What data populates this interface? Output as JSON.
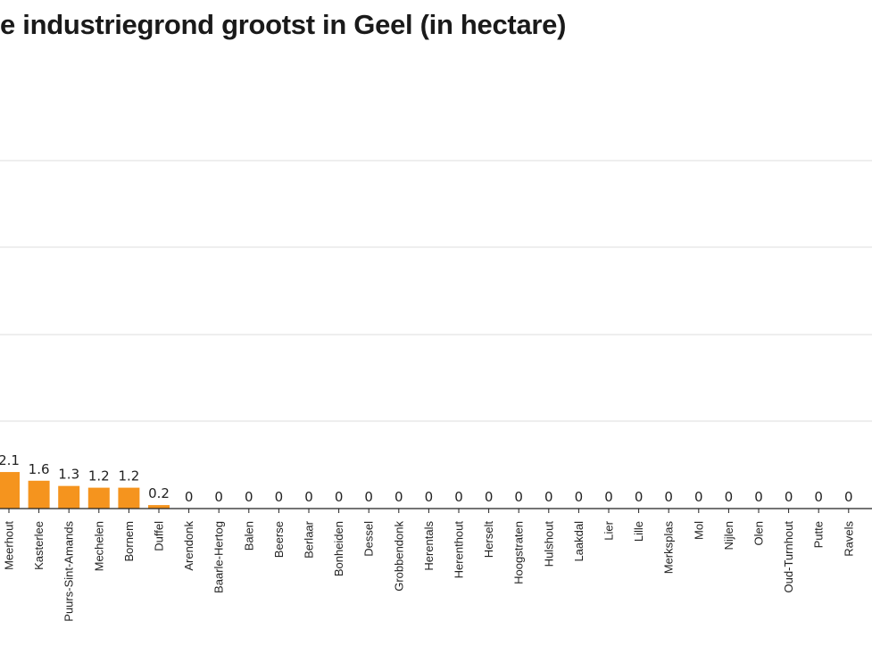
{
  "title": "e industriegrond grootst in Geel (in hectare)",
  "chart_data": {
    "type": "bar",
    "title": "e industriegrond grootst in Geel (in hectare)",
    "xlabel": "",
    "ylabel": "",
    "grid": true,
    "colors": {
      "bar": "#f5941e",
      "grid": "#e3e3e3",
      "axis": "#222222"
    },
    "categories": [
      "Meerhout",
      "Kasterlee",
      "Puurs-Sint-Amands",
      "Mechelen",
      "Bornem",
      "Duffel",
      "Arendonk",
      "Baarle-Hertog",
      "Balen",
      "Beerse",
      "Berlaar",
      "Bonheiden",
      "Dessel",
      "Grobbendonk",
      "Herentals",
      "Herenthout",
      "Herselt",
      "Hoogstraten",
      "Hulshout",
      "Laakdal",
      "Lier",
      "Lille",
      "Merksplas",
      "Mol",
      "Nijlen",
      "Olen",
      "Oud-Turnhout",
      "Putte",
      "Ravels"
    ],
    "values": [
      2.1,
      1.6,
      1.3,
      1.2,
      1.2,
      0.2,
      0,
      0,
      0,
      0,
      0,
      0,
      0,
      0,
      0,
      0,
      0,
      0,
      0,
      0,
      0,
      0,
      0,
      0,
      0,
      0,
      0,
      0,
      0
    ],
    "value_labels": [
      "2.1",
      "1.6",
      "1.3",
      "1.2",
      "1.2",
      "0.2",
      "0",
      "0",
      "0",
      "0",
      "0",
      "0",
      "0",
      "0",
      "0",
      "0",
      "0",
      "0",
      "0",
      "0",
      "0",
      "0",
      "0",
      "0",
      "0",
      "0",
      "0",
      "0",
      "0"
    ]
  }
}
